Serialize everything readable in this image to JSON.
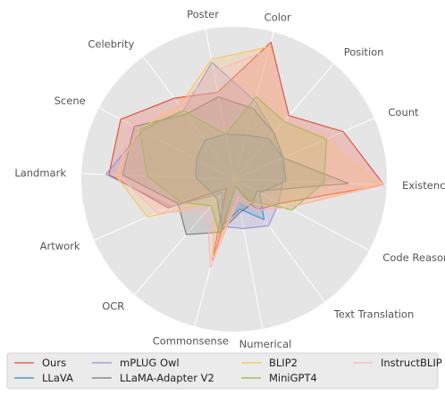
{
  "chart_data": {
    "type": "radar",
    "axes": [
      "Color",
      "Position",
      "Count",
      "Existence",
      "Code Reasoning",
      "Text Translation",
      "Numerical",
      "Commonsense",
      "OCR",
      "Artwork",
      "Landmark",
      "Scene",
      "Celebrity",
      "Poster"
    ],
    "rlim": [
      0,
      1
    ],
    "grid": false,
    "legend_position": "bottom",
    "series": [
      {
        "name": "Ours",
        "color": "#e24a33",
        "values": [
          0.93,
          0.55,
          0.78,
          0.98,
          0.34,
          0.25,
          0.05,
          0.55,
          0.08,
          0.47,
          0.82,
          0.84,
          0.66,
          0.58
        ]
      },
      {
        "name": "LLaVA",
        "color": "#348abd",
        "values": [
          0.3,
          0.35,
          0.35,
          0.34,
          0.19,
          0.33,
          0.2,
          0.32,
          0.17,
          0.18,
          0.25,
          0.28,
          0.32,
          0.3
        ]
      },
      {
        "name": "mPLUG Owl",
        "color": "#988ed5",
        "values": [
          0.53,
          0.4,
          0.35,
          0.32,
          0.33,
          0.38,
          0.33,
          0.32,
          0.12,
          0.45,
          0.84,
          0.68,
          0.56,
          0.78
        ]
      },
      {
        "name": "LLaMA-Adapter V2",
        "color": "#777777",
        "values": [
          0.48,
          0.4,
          0.35,
          0.75,
          0.17,
          0.2,
          0.22,
          0.36,
          0.48,
          0.4,
          0.73,
          0.74,
          0.53,
          0.55
        ]
      },
      {
        "name": "BLIP2",
        "color": "#fbc15e",
        "values": [
          0.9,
          0.5,
          0.65,
          0.95,
          0.4,
          0.2,
          0.12,
          0.54,
          0.2,
          0.62,
          0.78,
          0.7,
          0.6,
          0.8
        ]
      },
      {
        "name": "MiniGPT4",
        "color": "#8eba42",
        "values": [
          0.56,
          0.5,
          0.66,
          0.59,
          0.43,
          0.18,
          0.05,
          0.37,
          0.23,
          0.38,
          0.57,
          0.7,
          0.56,
          0.3
        ]
      },
      {
        "name": "InstructBLIP",
        "color": "#ffb5b8",
        "values": [
          0.88,
          0.52,
          0.72,
          0.98,
          0.4,
          0.25,
          0.14,
          0.6,
          0.27,
          0.55,
          0.76,
          0.77,
          0.6,
          0.72
        ]
      }
    ]
  }
}
